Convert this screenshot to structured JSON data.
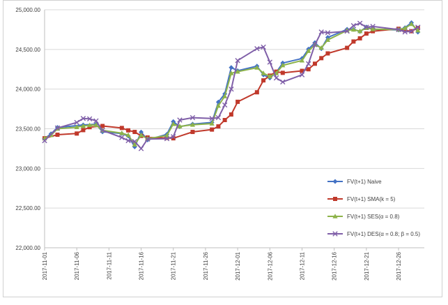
{
  "chart_data": {
    "type": "line",
    "ylim": [
      22000,
      25000
    ],
    "y_ticks": [
      "25,000.00",
      "24,500.00",
      "24,000.00",
      "23,500.00",
      "23,000.00",
      "22,500.00",
      "22,000.00"
    ],
    "y_tick_values": [
      25000,
      24500,
      24000,
      23500,
      23000,
      22500,
      22000
    ],
    "x_ticks": [
      "2017-11-01",
      "2017-11-06",
      "2017-11-11",
      "2017-11-16",
      "2017-11-21",
      "2017-11-26",
      "2017-12-01",
      "2017-12-06",
      "2017-12-11",
      "2017-12-16",
      "2017-12-21",
      "2017-12-26"
    ],
    "x_range": [
      "2017-11-01",
      "2017-12-30"
    ],
    "grid": true,
    "legend_position": "right-lower",
    "series": [
      {
        "name": "FV(t+1) Naive",
        "color": "#4472c4",
        "marker": "diamond",
        "x": [
          "2017-11-01",
          "2017-11-02",
          "2017-11-03",
          "2017-11-07",
          "2017-11-09",
          "2017-11-10",
          "2017-11-13",
          "2017-11-14",
          "2017-11-15",
          "2017-11-16",
          "2017-11-17",
          "2017-11-20",
          "2017-11-21",
          "2017-11-22",
          "2017-11-24",
          "2017-11-27",
          "2017-11-28",
          "2017-11-29",
          "2017-11-30",
          "2017-12-01",
          "2017-12-04",
          "2017-12-05",
          "2017-12-06",
          "2017-12-07",
          "2017-12-08",
          "2017-12-11",
          "2017-12-12",
          "2017-12-13",
          "2017-12-14",
          "2017-12-15",
          "2017-12-18",
          "2017-12-19",
          "2017-12-20",
          "2017-12-21",
          "2017-12-22",
          "2017-12-26",
          "2017-12-27",
          "2017-12-28",
          "2017-12-29"
        ],
        "values": [
          23377,
          23436,
          23516,
          23548,
          23557,
          23462,
          23439,
          23409,
          23272,
          23458,
          23359,
          23430,
          23590,
          23526,
          23558,
          23580,
          23836,
          23940,
          24272,
          24231,
          24290,
          24180,
          24140,
          24211,
          24329,
          24386,
          24504,
          24585,
          24509,
          24651,
          24754,
          24754,
          24726,
          24782,
          24754,
          24746,
          24774,
          24837,
          24719
        ]
      },
      {
        "name": "FV(t+1) SMA(k = 5)",
        "color": "#c0392b",
        "marker": "square",
        "x": [
          "2017-11-01",
          "2017-11-03",
          "2017-11-06",
          "2017-11-07",
          "2017-11-08",
          "2017-11-10",
          "2017-11-13",
          "2017-11-14",
          "2017-11-15",
          "2017-11-16",
          "2017-11-17",
          "2017-11-20",
          "2017-11-21",
          "2017-11-24",
          "2017-11-27",
          "2017-11-28",
          "2017-11-29",
          "2017-11-30",
          "2017-12-01",
          "2017-12-04",
          "2017-12-05",
          "2017-12-06",
          "2017-12-07",
          "2017-12-08",
          "2017-12-11",
          "2017-12-12",
          "2017-12-13",
          "2017-12-14",
          "2017-12-15",
          "2017-12-18",
          "2017-12-19",
          "2017-12-20",
          "2017-12-21",
          "2017-12-22",
          "2017-12-26",
          "2017-12-27",
          "2017-12-28",
          "2017-12-29"
        ],
        "values": [
          23380,
          23425,
          23440,
          23483,
          23520,
          23535,
          23510,
          23480,
          23460,
          23410,
          23390,
          23385,
          23380,
          23460,
          23490,
          23530,
          23610,
          23680,
          23840,
          23960,
          24110,
          24170,
          24220,
          24205,
          24230,
          24250,
          24320,
          24390,
          24450,
          24520,
          24600,
          24640,
          24700,
          24730,
          24760,
          24740,
          24730,
          24770
        ]
      },
      {
        "name": "FV(t+1) SES(α = 0.8)",
        "color": "#8db34a",
        "marker": "triangle",
        "x": [
          "2017-11-01",
          "2017-11-02",
          "2017-11-03",
          "2017-11-06",
          "2017-11-07",
          "2017-11-08",
          "2017-11-09",
          "2017-11-10",
          "2017-11-13",
          "2017-11-14",
          "2017-11-15",
          "2017-11-16",
          "2017-11-17",
          "2017-11-20",
          "2017-11-21",
          "2017-11-22",
          "2017-11-24",
          "2017-11-27",
          "2017-11-28",
          "2017-11-29",
          "2017-11-30",
          "2017-12-01",
          "2017-12-04",
          "2017-12-05",
          "2017-12-06",
          "2017-12-07",
          "2017-12-08",
          "2017-12-11",
          "2017-12-12",
          "2017-12-13",
          "2017-12-14",
          "2017-12-15",
          "2017-12-18",
          "2017-12-19",
          "2017-12-20",
          "2017-12-21",
          "2017-12-22",
          "2017-12-26",
          "2017-12-27",
          "2017-12-28",
          "2017-12-29"
        ],
        "values": [
          23378,
          23420,
          23500,
          23520,
          23535,
          23545,
          23548,
          23480,
          23445,
          23420,
          23300,
          23420,
          23375,
          23415,
          23560,
          23530,
          23550,
          23565,
          23790,
          23910,
          24200,
          24220,
          24270,
          24200,
          24160,
          24200,
          24300,
          24360,
          24480,
          24560,
          24520,
          24620,
          24740,
          24750,
          24730,
          24770,
          24755,
          24750,
          24768,
          24820,
          24740
        ]
      },
      {
        "name": "FV(t+1) DES(α = 0.8; β = 0.5)",
        "color": "#7f5fa8",
        "marker": "x",
        "x": [
          "2017-11-01",
          "2017-11-03",
          "2017-11-06",
          "2017-11-07",
          "2017-11-08",
          "2017-11-09",
          "2017-11-10",
          "2017-11-13",
          "2017-11-14",
          "2017-11-15",
          "2017-11-16",
          "2017-11-17",
          "2017-11-20",
          "2017-11-21",
          "2017-11-22",
          "2017-11-24",
          "2017-11-27",
          "2017-11-28",
          "2017-11-29",
          "2017-11-30",
          "2017-12-01",
          "2017-12-04",
          "2017-12-05",
          "2017-12-06",
          "2017-12-07",
          "2017-12-08",
          "2017-12-11",
          "2017-12-12",
          "2017-12-13",
          "2017-12-14",
          "2017-12-15",
          "2017-12-18",
          "2017-12-19",
          "2017-12-20",
          "2017-12-21",
          "2017-12-22",
          "2017-12-26",
          "2017-12-27",
          "2017-12-28",
          "2017-12-29"
        ],
        "values": [
          23350,
          23510,
          23580,
          23630,
          23625,
          23600,
          23480,
          23390,
          23350,
          23340,
          23250,
          23370,
          23375,
          23400,
          23610,
          23640,
          23630,
          23640,
          23800,
          24000,
          24360,
          24510,
          24530,
          24340,
          24140,
          24090,
          24180,
          24320,
          24560,
          24720,
          24710,
          24730,
          24800,
          24830,
          24780,
          24790,
          24750,
          24720,
          24730,
          24780
        ]
      }
    ]
  }
}
